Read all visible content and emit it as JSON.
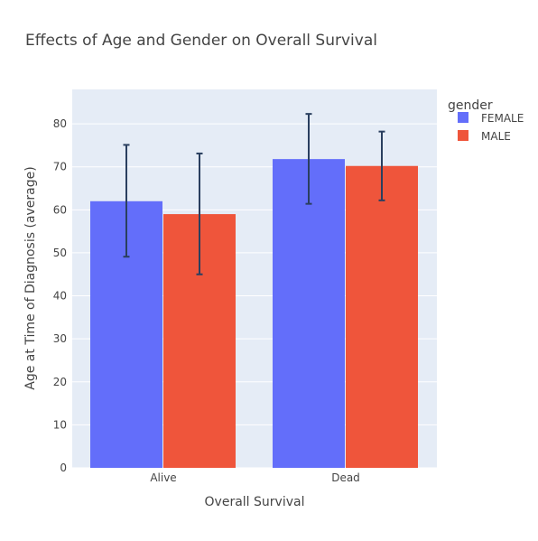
{
  "chart_data": {
    "type": "bar",
    "title": "Effects of Age and Gender on Overall Survival",
    "xlabel": "Overall Survival",
    "ylabel": "Age at Time of Diagnosis (average)",
    "categories": [
      "Alive",
      "Dead"
    ],
    "ylim": [
      0,
      88
    ],
    "yticks": [
      0,
      10,
      20,
      30,
      40,
      50,
      60,
      70,
      80
    ],
    "grid": true,
    "legend": {
      "title": "gender",
      "placement": "top-right"
    },
    "series": [
      {
        "name": "FEMALE",
        "color": "#636efa",
        "values": [
          62,
          71.8
        ],
        "error_low": [
          49.1,
          61.4
        ],
        "error_high": [
          75.1,
          82.3
        ]
      },
      {
        "name": "MALE",
        "color": "#ef553b",
        "values": [
          59,
          70.2
        ],
        "error_low": [
          45,
          62.2
        ],
        "error_high": [
          73.1,
          78.2
        ]
      }
    ],
    "colors": {
      "plot_background": "#e5ecf6",
      "grid": "#ffffff",
      "error_bar": "#2a3f5f"
    }
  }
}
